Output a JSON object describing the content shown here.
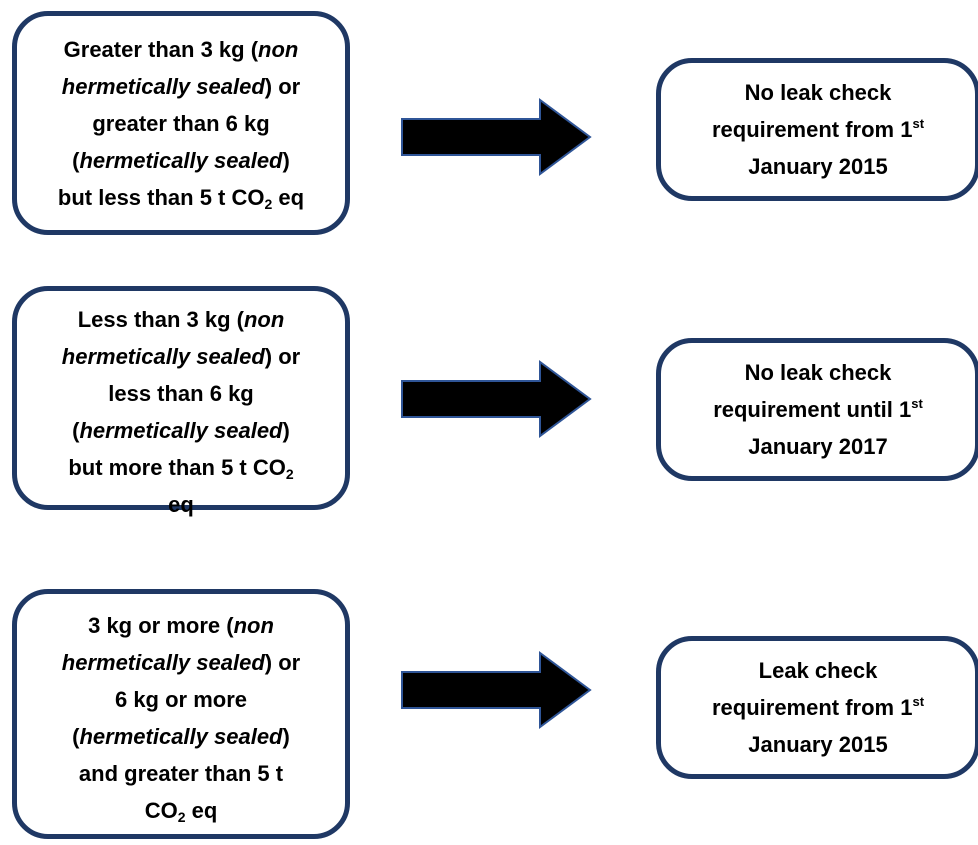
{
  "rows": [
    {
      "condition": {
        "line1_a": "Greater than 3 kg (",
        "line1_i": "non",
        "line2_i": "hermetically sealed",
        "line2_b": ") or",
        "line3": "greater than 6 kg",
        "line4_a": "(",
        "line4_i": "hermetically sealed",
        "line4_b": ")",
        "line5_a": "but less than 5 t CO",
        "line5_sub": "2",
        "line5_b": " eq"
      },
      "outcome": {
        "line1": "No leak check",
        "line2": "requirement from 1",
        "line2_sup": "st",
        "line3": "January 2015"
      }
    },
    {
      "condition": {
        "line1_a": "Less than 3 kg (",
        "line1_i": "non",
        "line2_i": "hermetically sealed",
        "line2_b": ") or",
        "line3": "less than 6 kg",
        "line4_a": "(",
        "line4_i": "hermetically sealed",
        "line4_b": ")",
        "line5_a": "but more than 5 t CO",
        "line5_sub": "2",
        "line6": "eq"
      },
      "outcome": {
        "line1": "No leak check",
        "line2": "requirement until 1",
        "line2_sup": "st",
        "line3": "January 2017"
      }
    },
    {
      "condition": {
        "line1_a": "3 kg or more (",
        "line1_i": "non",
        "line2_i": "hermetically sealed",
        "line2_b": ") or",
        "line3": "6 kg or more",
        "line4_a": "(",
        "line4_i": "hermetically sealed",
        "line4_b": ")",
        "line5": "and greater than 5 t",
        "line6_a": "CO",
        "line6_sub": "2",
        "line6_b": " eq"
      },
      "outcome": {
        "line1": "Leak check",
        "line2": "requirement from 1",
        "line2_sup": "st",
        "line3": "January 2015"
      }
    }
  ],
  "colors": {
    "box_border": "#1f3864",
    "arrow_fill": "#000000",
    "arrow_stroke": "#2f5597"
  }
}
